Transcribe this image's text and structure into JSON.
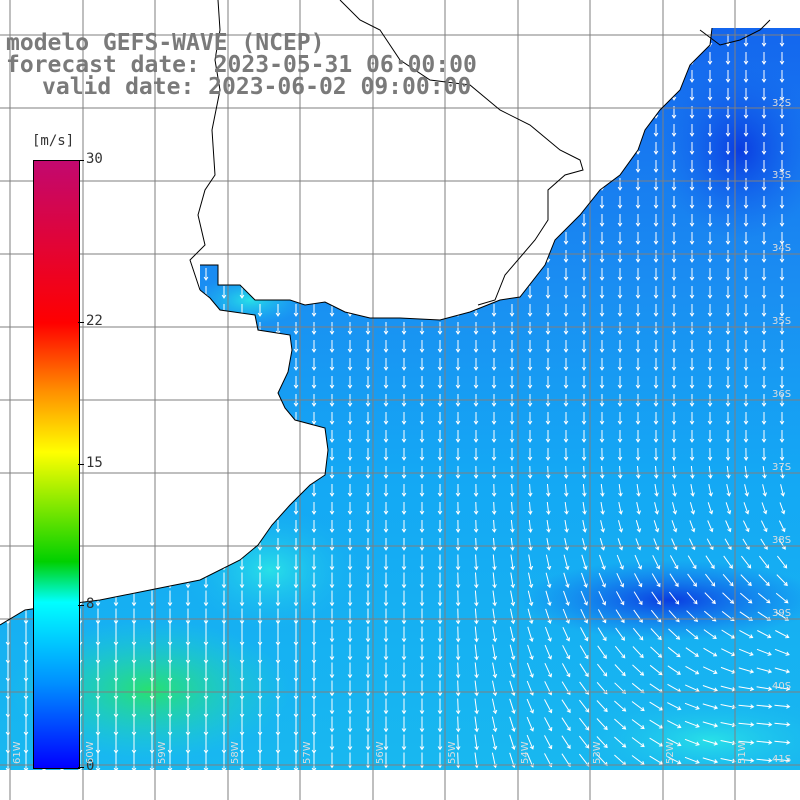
{
  "title": {
    "line1": "modelo GEFS-WAVE (NCEP)",
    "line2": "forecast date: 2023-05-31 06:00:00",
    "line3": "valid date: 2023-06-02 09:00:00"
  },
  "colorbar": {
    "units": "[m/s]",
    "ticks": [
      {
        "value": 30,
        "label": "30"
      },
      {
        "value": 22,
        "label": "22"
      },
      {
        "value": 15,
        "label": "15"
      },
      {
        "value": 8,
        "label": "8"
      },
      {
        "value": 0,
        "label": "0"
      }
    ],
    "min": 0,
    "max": 30
  },
  "map": {
    "lat_labels": [
      "32S",
      "33S",
      "34S",
      "35S",
      "36S",
      "37S",
      "38S",
      "39S",
      "40S",
      "41S"
    ],
    "lon_labels": [
      "61W",
      "60W",
      "59W",
      "58W",
      "57W",
      "56W",
      "55W",
      "54W",
      "53W",
      "52W",
      "51W"
    ],
    "land_color": "#ffffff",
    "grid_color": "#7f7f7f",
    "coast_color": "#000000"
  }
}
